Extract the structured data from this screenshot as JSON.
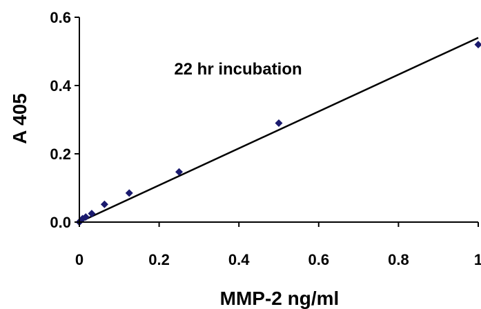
{
  "chart_data": {
    "type": "scatter",
    "title": "",
    "annotation": "22 hr incubation",
    "xlabel": "MMP-2 ng/ml",
    "ylabel": "A 405",
    "xlim": [
      0,
      1
    ],
    "ylim": [
      0,
      0.6
    ],
    "x_ticks": [
      "0",
      "0.2",
      "0.4",
      "0.6",
      "0.8",
      "1"
    ],
    "y_ticks": [
      "0.0",
      "0.2",
      "0.4",
      "0.6"
    ],
    "grid": false,
    "legend": "none",
    "marker_color": "#1a1a6e",
    "line_color": "#000000",
    "series": [
      {
        "x": [
          0,
          0.004,
          0.008,
          0.016,
          0.031,
          0.063,
          0.125,
          0.25,
          0.5,
          1.0
        ],
        "y": [
          0.0,
          0.005,
          0.01,
          0.015,
          0.025,
          0.052,
          0.085,
          0.147,
          0.29,
          0.52
        ]
      }
    ],
    "trendline": {
      "x": [
        0,
        1
      ],
      "y": [
        0.0,
        0.54
      ]
    }
  }
}
